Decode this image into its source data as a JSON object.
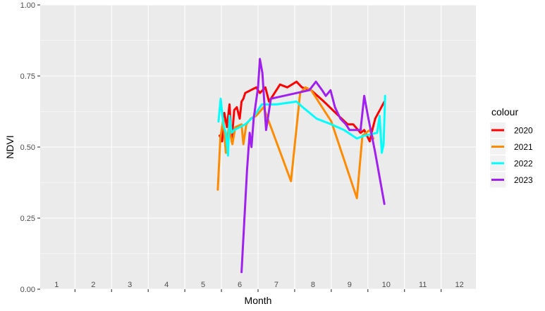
{
  "chart_data": {
    "type": "line",
    "xlabel": "Month",
    "ylabel": "NDVI",
    "xlim": [
      0.55,
      12.45
    ],
    "ylim": [
      0,
      1
    ],
    "x_ticks": [
      1,
      2,
      3,
      4,
      5,
      6,
      7,
      8,
      9,
      10,
      11,
      12
    ],
    "x_tick_labels": [
      "1",
      "2",
      "3",
      "4",
      "5",
      "6",
      "7",
      "8",
      "9",
      "10",
      "11",
      "12"
    ],
    "y_ticks": [
      0,
      0.25,
      0.5,
      0.75,
      1
    ],
    "y_tick_labels": [
      "0.00",
      "0.25",
      "0.50",
      "0.75",
      "1.00"
    ],
    "grid": true,
    "legend": {
      "title": "colour",
      "position": "right"
    },
    "series": [
      {
        "name": "2020",
        "color": "#ff0000",
        "points": [
          [
            5.45,
            0.54
          ],
          [
            5.52,
            0.52
          ],
          [
            5.58,
            0.62
          ],
          [
            5.65,
            0.57
          ],
          [
            5.72,
            0.65
          ],
          [
            5.78,
            0.52
          ],
          [
            5.85,
            0.63
          ],
          [
            5.92,
            0.64
          ],
          [
            6.0,
            0.6
          ],
          [
            6.05,
            0.66
          ],
          [
            6.1,
            0.67
          ],
          [
            6.15,
            0.69
          ],
          [
            6.45,
            0.71
          ],
          [
            6.55,
            0.69
          ],
          [
            6.7,
            0.71
          ],
          [
            6.8,
            0.66
          ],
          [
            7.1,
            0.72
          ],
          [
            7.3,
            0.71
          ],
          [
            7.55,
            0.73
          ],
          [
            7.7,
            0.71
          ],
          [
            7.95,
            0.7
          ],
          [
            8.3,
            0.66
          ],
          [
            8.7,
            0.61
          ],
          [
            8.95,
            0.58
          ],
          [
            9.1,
            0.58
          ],
          [
            9.3,
            0.55
          ],
          [
            9.4,
            0.56
          ],
          [
            9.55,
            0.52
          ],
          [
            9.6,
            0.55
          ],
          [
            9.7,
            0.6
          ],
          [
            9.95,
            0.66
          ]
        ]
      },
      {
        "name": "2021",
        "color": "#ff8c00",
        "points": [
          [
            5.4,
            0.35
          ],
          [
            5.47,
            0.53
          ],
          [
            5.55,
            0.6
          ],
          [
            5.62,
            0.48
          ],
          [
            5.7,
            0.57
          ],
          [
            5.8,
            0.51
          ],
          [
            5.88,
            0.57
          ],
          [
            6.05,
            0.58
          ],
          [
            6.1,
            0.51
          ],
          [
            6.18,
            0.58
          ],
          [
            6.3,
            0.6
          ],
          [
            6.45,
            0.61
          ],
          [
            6.65,
            0.64
          ],
          [
            7.4,
            0.38
          ],
          [
            7.65,
            0.69
          ],
          [
            7.8,
            0.71
          ],
          [
            7.95,
            0.7
          ],
          [
            8.5,
            0.59
          ],
          [
            9.2,
            0.32
          ],
          [
            9.35,
            0.54
          ],
          [
            9.55,
            0.56
          ],
          [
            9.65,
            0.53
          ]
        ]
      },
      {
        "name": "2022",
        "color": "#00ffff",
        "points": [
          [
            5.42,
            0.59
          ],
          [
            5.48,
            0.67
          ],
          [
            5.55,
            0.58
          ],
          [
            5.62,
            0.55
          ],
          [
            5.68,
            0.47
          ],
          [
            5.72,
            0.61
          ],
          [
            5.78,
            0.55
          ],
          [
            5.85,
            0.56
          ],
          [
            6.15,
            0.58
          ],
          [
            6.4,
            0.61
          ],
          [
            6.6,
            0.65
          ],
          [
            6.8,
            0.65
          ],
          [
            7.0,
            0.65
          ],
          [
            7.55,
            0.66
          ],
          [
            7.72,
            0.64
          ],
          [
            8.1,
            0.6
          ],
          [
            8.5,
            0.58
          ],
          [
            8.85,
            0.56
          ],
          [
            9.2,
            0.53
          ],
          [
            9.4,
            0.54
          ],
          [
            9.75,
            0.55
          ],
          [
            9.82,
            0.61
          ],
          [
            9.88,
            0.48
          ],
          [
            9.93,
            0.51
          ],
          [
            9.97,
            0.68
          ]
        ]
      },
      {
        "name": "2023",
        "color": "#a020f0",
        "points": [
          [
            6.05,
            0.06
          ],
          [
            6.2,
            0.42
          ],
          [
            6.27,
            0.55
          ],
          [
            6.32,
            0.5
          ],
          [
            6.38,
            0.6
          ],
          [
            6.5,
            0.71
          ],
          [
            6.55,
            0.81
          ],
          [
            6.62,
            0.76
          ],
          [
            6.72,
            0.56
          ],
          [
            6.85,
            0.67
          ],
          [
            7.9,
            0.7
          ],
          [
            8.08,
            0.73
          ],
          [
            8.25,
            0.7
          ],
          [
            8.35,
            0.68
          ],
          [
            8.48,
            0.7
          ],
          [
            8.6,
            0.64
          ],
          [
            8.75,
            0.6
          ],
          [
            8.9,
            0.58
          ],
          [
            9.0,
            0.56
          ],
          [
            9.3,
            0.56
          ],
          [
            9.4,
            0.68
          ],
          [
            9.5,
            0.61
          ],
          [
            9.7,
            0.48
          ],
          [
            9.95,
            0.3
          ]
        ]
      }
    ]
  }
}
